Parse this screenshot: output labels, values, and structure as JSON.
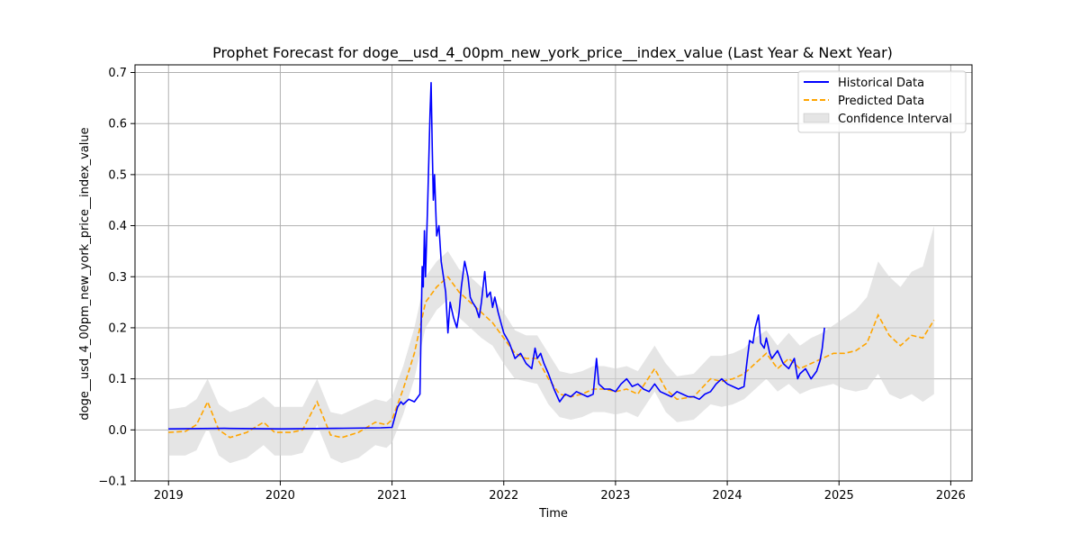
{
  "chart_data": {
    "type": "line",
    "title": "Prophet Forecast for doge__usd_4_00pm_new_york_price__index_value (Last Year & Next Year)",
    "xlabel": "Time",
    "ylabel": "doge__usd_4_00pm_new_york_price__index_value",
    "xlim": [
      2018.7,
      2026.19
    ],
    "ylim": [
      -0.1,
      0.715
    ],
    "x_ticks": [
      2019,
      2020,
      2021,
      2022,
      2023,
      2024,
      2025,
      2026
    ],
    "x_tick_labels": [
      "2019",
      "2020",
      "2021",
      "2022",
      "2023",
      "2024",
      "2025",
      "2026"
    ],
    "y_ticks": [
      -0.1,
      0.0,
      0.1,
      0.2,
      0.3,
      0.4,
      0.5,
      0.6,
      0.7
    ],
    "y_tick_labels": [
      "−0.1",
      "0.0",
      "0.1",
      "0.2",
      "0.3",
      "0.4",
      "0.5",
      "0.6",
      "0.7"
    ],
    "grid": true,
    "legend_position": "top-right",
    "colors": {
      "historical": "#0000ff",
      "predicted": "#ffa500",
      "confidence": "#d3d3d3"
    },
    "series": [
      {
        "name": "Historical Data",
        "style": "solid",
        "x": [
          2019.0,
          2019.5,
          2020.0,
          2020.5,
          2020.9,
          2021.0,
          2021.05,
          2021.08,
          2021.1,
          2021.15,
          2021.2,
          2021.25,
          2021.27,
          2021.28,
          2021.29,
          2021.3,
          2021.32,
          2021.34,
          2021.35,
          2021.36,
          2021.37,
          2021.38,
          2021.4,
          2021.42,
          2021.44,
          2021.46,
          2021.48,
          2021.5,
          2021.52,
          2021.55,
          2021.58,
          2021.6,
          2021.62,
          2021.65,
          2021.68,
          2021.7,
          2021.72,
          2021.75,
          2021.78,
          2021.8,
          2021.83,
          2021.85,
          2021.88,
          2021.9,
          2021.92,
          2021.95,
          2022.0,
          2022.05,
          2022.1,
          2022.15,
          2022.2,
          2022.25,
          2022.28,
          2022.3,
          2022.33,
          2022.36,
          2022.4,
          2022.45,
          2022.5,
          2022.55,
          2022.6,
          2022.65,
          2022.7,
          2022.75,
          2022.8,
          2022.83,
          2022.85,
          2022.9,
          2022.95,
          2023.0,
          2023.05,
          2023.1,
          2023.15,
          2023.2,
          2023.25,
          2023.3,
          2023.35,
          2023.4,
          2023.45,
          2023.5,
          2023.55,
          2023.6,
          2023.65,
          2023.7,
          2023.75,
          2023.8,
          2023.85,
          2023.9,
          2023.95,
          2024.0,
          2024.05,
          2024.1,
          2024.15,
          2024.18,
          2024.2,
          2024.23,
          2024.25,
          2024.28,
          2024.3,
          2024.33,
          2024.35,
          2024.38,
          2024.4,
          2024.45,
          2024.5,
          2024.55,
          2024.6,
          2024.63,
          2024.65,
          2024.7,
          2024.75,
          2024.8,
          2024.83,
          2024.85,
          2024.87
        ],
        "values": [
          0.002,
          0.003,
          0.002,
          0.003,
          0.004,
          0.005,
          0.045,
          0.055,
          0.05,
          0.06,
          0.055,
          0.07,
          0.32,
          0.28,
          0.39,
          0.3,
          0.45,
          0.62,
          0.68,
          0.55,
          0.45,
          0.5,
          0.38,
          0.4,
          0.33,
          0.3,
          0.27,
          0.19,
          0.25,
          0.22,
          0.2,
          0.23,
          0.28,
          0.33,
          0.3,
          0.26,
          0.25,
          0.24,
          0.22,
          0.25,
          0.31,
          0.26,
          0.27,
          0.24,
          0.26,
          0.23,
          0.19,
          0.17,
          0.14,
          0.15,
          0.13,
          0.12,
          0.16,
          0.14,
          0.15,
          0.13,
          0.11,
          0.08,
          0.055,
          0.07,
          0.065,
          0.075,
          0.07,
          0.065,
          0.07,
          0.14,
          0.09,
          0.08,
          0.08,
          0.075,
          0.09,
          0.1,
          0.085,
          0.09,
          0.08,
          0.075,
          0.09,
          0.075,
          0.07,
          0.065,
          0.075,
          0.07,
          0.065,
          0.065,
          0.06,
          0.07,
          0.075,
          0.09,
          0.1,
          0.09,
          0.085,
          0.08,
          0.085,
          0.14,
          0.175,
          0.17,
          0.2,
          0.225,
          0.17,
          0.16,
          0.18,
          0.15,
          0.14,
          0.155,
          0.13,
          0.12,
          0.14,
          0.1,
          0.11,
          0.12,
          0.1,
          0.115,
          0.135,
          0.16,
          0.2
        ]
      },
      {
        "name": "Predicted Data",
        "style": "dashed",
        "x": [
          2019.0,
          2019.15,
          2019.25,
          2019.35,
          2019.45,
          2019.55,
          2019.7,
          2019.85,
          2019.95,
          2020.1,
          2020.2,
          2020.33,
          2020.45,
          2020.55,
          2020.7,
          2020.85,
          2020.95,
          2021.0,
          2021.1,
          2021.2,
          2021.3,
          2021.4,
          2021.5,
          2021.6,
          2021.7,
          2021.8,
          2021.9,
          2022.0,
          2022.1,
          2022.2,
          2022.3,
          2022.4,
          2022.5,
          2022.6,
          2022.7,
          2022.8,
          2022.9,
          2023.0,
          2023.1,
          2023.2,
          2023.35,
          2023.45,
          2023.55,
          2023.7,
          2023.85,
          2023.95,
          2024.05,
          2024.15,
          2024.25,
          2024.35,
          2024.45,
          2024.55,
          2024.65,
          2024.75,
          2024.85,
          2024.95,
          2025.05,
          2025.15,
          2025.25,
          2025.35,
          2025.45,
          2025.55,
          2025.65,
          2025.75,
          2025.85
        ],
        "values": [
          -0.005,
          -0.003,
          0.01,
          0.055,
          0.0,
          -0.015,
          -0.005,
          0.015,
          -0.005,
          -0.005,
          0.0,
          0.055,
          -0.01,
          -0.015,
          -0.005,
          0.015,
          0.01,
          0.02,
          0.08,
          0.15,
          0.25,
          0.28,
          0.3,
          0.27,
          0.25,
          0.23,
          0.21,
          0.18,
          0.15,
          0.14,
          0.14,
          0.1,
          0.07,
          0.065,
          0.07,
          0.08,
          0.08,
          0.075,
          0.08,
          0.07,
          0.12,
          0.08,
          0.06,
          0.065,
          0.1,
          0.095,
          0.1,
          0.11,
          0.13,
          0.15,
          0.12,
          0.14,
          0.12,
          0.13,
          0.14,
          0.15,
          0.15,
          0.155,
          0.17,
          0.225,
          0.185,
          0.165,
          0.185,
          0.18,
          0.215
        ]
      }
    ],
    "confidence_interval": {
      "name": "Confidence Interval",
      "x": [
        2019.0,
        2019.15,
        2019.25,
        2019.35,
        2019.45,
        2019.55,
        2019.7,
        2019.85,
        2019.95,
        2020.1,
        2020.2,
        2020.33,
        2020.45,
        2020.55,
        2020.7,
        2020.85,
        2020.95,
        2021.0,
        2021.1,
        2021.2,
        2021.3,
        2021.4,
        2021.5,
        2021.6,
        2021.7,
        2021.8,
        2021.9,
        2022.0,
        2022.1,
        2022.2,
        2022.3,
        2022.4,
        2022.5,
        2022.6,
        2022.7,
        2022.8,
        2022.9,
        2023.0,
        2023.1,
        2023.2,
        2023.35,
        2023.45,
        2023.55,
        2023.7,
        2023.85,
        2023.95,
        2024.05,
        2024.15,
        2024.25,
        2024.35,
        2024.45,
        2024.55,
        2024.65,
        2024.75,
        2024.85,
        2024.95,
        2025.05,
        2025.15,
        2025.25,
        2025.35,
        2025.45,
        2025.55,
        2025.65,
        2025.75,
        2025.85
      ],
      "lower": [
        -0.05,
        -0.05,
        -0.04,
        0.005,
        -0.05,
        -0.065,
        -0.055,
        -0.03,
        -0.05,
        -0.05,
        -0.045,
        0.01,
        -0.055,
        -0.065,
        -0.055,
        -0.03,
        -0.035,
        -0.025,
        0.03,
        0.1,
        0.2,
        0.235,
        0.255,
        0.22,
        0.2,
        0.18,
        0.165,
        0.13,
        0.1,
        0.095,
        0.09,
        0.05,
        0.025,
        0.02,
        0.025,
        0.035,
        0.035,
        0.03,
        0.035,
        0.025,
        0.075,
        0.035,
        0.015,
        0.02,
        0.05,
        0.045,
        0.05,
        0.06,
        0.08,
        0.1,
        0.075,
        0.09,
        0.07,
        0.08,
        0.085,
        0.09,
        0.08,
        0.075,
        0.08,
        0.11,
        0.07,
        0.06,
        0.07,
        0.055,
        0.07
      ],
      "upper": [
        0.04,
        0.045,
        0.06,
        0.1,
        0.05,
        0.035,
        0.045,
        0.065,
        0.045,
        0.045,
        0.045,
        0.1,
        0.035,
        0.03,
        0.045,
        0.06,
        0.055,
        0.065,
        0.125,
        0.2,
        0.3,
        0.33,
        0.35,
        0.315,
        0.3,
        0.28,
        0.26,
        0.23,
        0.195,
        0.185,
        0.185,
        0.15,
        0.115,
        0.11,
        0.115,
        0.125,
        0.125,
        0.12,
        0.125,
        0.115,
        0.165,
        0.13,
        0.105,
        0.11,
        0.145,
        0.145,
        0.15,
        0.16,
        0.18,
        0.195,
        0.165,
        0.19,
        0.165,
        0.18,
        0.19,
        0.205,
        0.22,
        0.235,
        0.26,
        0.33,
        0.3,
        0.28,
        0.31,
        0.32,
        0.4
      ]
    }
  }
}
